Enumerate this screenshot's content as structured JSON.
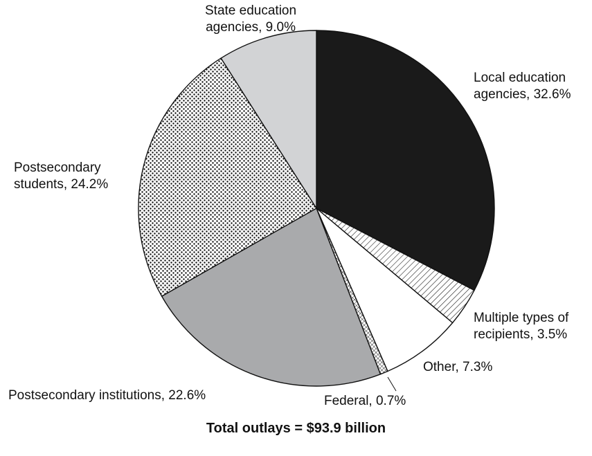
{
  "chart_data": {
    "type": "pie",
    "start_angle_deg": 0,
    "direction": "clockwise",
    "slices": [
      {
        "id": "local",
        "label_lines": [
          "Local education",
          "agencies, 32.6%"
        ],
        "value": 32.6,
        "fill": "#1a1a1a",
        "pattern": "solid"
      },
      {
        "id": "multiple",
        "label_lines": [
          "Multiple types of",
          "recipients, 3.5%"
        ],
        "value": 3.5,
        "fill": "#ffffff",
        "pattern": "diagonal-hatch"
      },
      {
        "id": "other",
        "label_lines": [
          "Other, 7.3%"
        ],
        "value": 7.3,
        "fill": "#ffffff",
        "pattern": "solid"
      },
      {
        "id": "federal",
        "label_lines": [
          "Federal, 0.7%"
        ],
        "value": 0.7,
        "fill": "#ffffff",
        "pattern": "cross-hatch"
      },
      {
        "id": "institutions",
        "label_lines": [
          "Postsecondary institutions, 22.6%"
        ],
        "value": 22.6,
        "fill": "#a9aaac",
        "pattern": "solid"
      },
      {
        "id": "students",
        "label_lines": [
          "Postsecondary",
          "students, 24.2%"
        ],
        "value": 24.2,
        "fill": "#ffffff",
        "pattern": "dots"
      },
      {
        "id": "state",
        "label_lines": [
          "State education",
          "agencies, 9.0%"
        ],
        "value": 9.0,
        "fill": "#d2d3d5",
        "pattern": "solid"
      }
    ],
    "caption": "Total outlays = $93.9 billion"
  }
}
